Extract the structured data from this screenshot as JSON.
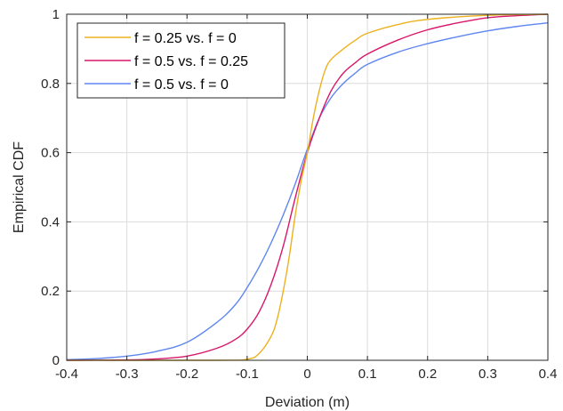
{
  "chart_data": {
    "type": "line",
    "xlabel": "Deviation (m)",
    "ylabel": "Empirical CDF",
    "xlim": [
      -0.4,
      0.4
    ],
    "ylim": [
      0,
      1
    ],
    "xticks": [
      -0.4,
      -0.3,
      -0.2,
      -0.1,
      0,
      0.1,
      0.2,
      0.3,
      0.4
    ],
    "xtick_labels": [
      "-0.4",
      "-0.3",
      "-0.2",
      "-0.1",
      "0",
      "0.1",
      "0.2",
      "0.3",
      "0.4"
    ],
    "yticks": [
      0,
      0.2,
      0.4,
      0.6,
      0.8,
      1
    ],
    "ytick_labels": [
      "0",
      "0.2",
      "0.4",
      "0.6",
      "0.8",
      "1"
    ],
    "grid": true,
    "legend_position": "top-left",
    "series": [
      {
        "name": "f = 0.25 vs. f = 0",
        "color": "#EDB120",
        "x": [
          -0.4,
          -0.15,
          -0.1,
          -0.08,
          -0.06,
          -0.05,
          -0.04,
          -0.03,
          -0.02,
          -0.01,
          0,
          0.01,
          0.02,
          0.03,
          0.04,
          0.06,
          0.08,
          0.1,
          0.15,
          0.2,
          0.3,
          0.4
        ],
        "y": [
          0,
          0,
          0.003,
          0.02,
          0.07,
          0.12,
          0.2,
          0.3,
          0.42,
          0.52,
          0.6,
          0.7,
          0.78,
          0.84,
          0.87,
          0.9,
          0.925,
          0.945,
          0.97,
          0.985,
          0.997,
          1.0
        ]
      },
      {
        "name": "f = 0.5 vs. f = 0.25",
        "color": "#D7176B",
        "x": [
          -0.4,
          -0.3,
          -0.25,
          -0.2,
          -0.15,
          -0.12,
          -0.1,
          -0.08,
          -0.06,
          -0.04,
          -0.02,
          0,
          0.02,
          0.04,
          0.06,
          0.08,
          0.1,
          0.15,
          0.2,
          0.25,
          0.3,
          0.35,
          0.4
        ],
        "y": [
          0,
          0.001,
          0.004,
          0.012,
          0.035,
          0.06,
          0.09,
          0.14,
          0.22,
          0.33,
          0.47,
          0.6,
          0.7,
          0.78,
          0.83,
          0.86,
          0.885,
          0.925,
          0.955,
          0.975,
          0.99,
          0.996,
          1.0
        ]
      },
      {
        "name": "f = 0.5 vs. f = 0",
        "color": "#5F86F0",
        "x": [
          -0.4,
          -0.35,
          -0.3,
          -0.25,
          -0.2,
          -0.15,
          -0.12,
          -0.1,
          -0.08,
          -0.06,
          -0.04,
          -0.02,
          0,
          0.02,
          0.04,
          0.06,
          0.08,
          0.1,
          0.15,
          0.2,
          0.25,
          0.3,
          0.35,
          0.4
        ],
        "y": [
          0.002,
          0.005,
          0.012,
          0.026,
          0.052,
          0.11,
          0.16,
          0.21,
          0.27,
          0.34,
          0.42,
          0.51,
          0.61,
          0.7,
          0.76,
          0.8,
          0.83,
          0.855,
          0.89,
          0.915,
          0.935,
          0.952,
          0.965,
          0.975
        ]
      }
    ]
  }
}
